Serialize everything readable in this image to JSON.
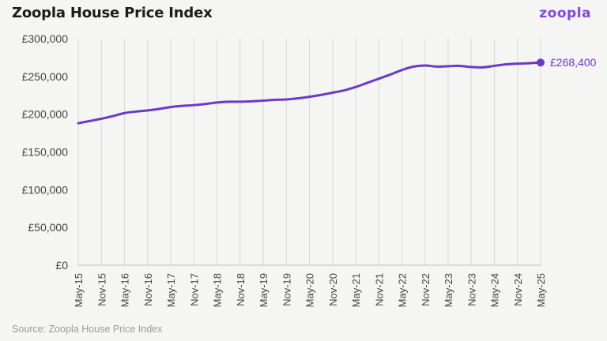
{
  "header": {
    "title": "Zoopla House Price Index",
    "logo_text": "zoopla"
  },
  "footer": {
    "source": "Source: Zoopla House Price Index"
  },
  "colors": {
    "line": "#6e38c9",
    "logo": "#8046f1",
    "grid": "#d9d9d9",
    "background": "#f5f5f3"
  },
  "chart_data": {
    "type": "line",
    "title": "Zoopla House Price Index",
    "xlabel": "",
    "ylabel": "",
    "ylim": [
      0,
      300000
    ],
    "yticks": [
      0,
      50000,
      100000,
      150000,
      200000,
      250000,
      300000
    ],
    "ytick_labels": [
      "£0",
      "£50,000",
      "£100,000",
      "£150,000",
      "£200,000",
      "£250,000",
      "£300,000"
    ],
    "xticks": [
      "May-15",
      "Nov-15",
      "May-16",
      "Nov-16",
      "May-17",
      "Nov-17",
      "May-18",
      "Nov-18",
      "May-19",
      "Nov-19",
      "May-20",
      "Nov-20",
      "May-21",
      "Nov-21",
      "May-22",
      "Nov-22",
      "May-23",
      "Nov-23",
      "May-24",
      "Nov-24",
      "May-25"
    ],
    "grid": "vertical",
    "legend": "none",
    "series": [
      {
        "x": [
          "May-15",
          "Aug-15",
          "Nov-15",
          "Feb-16",
          "May-16",
          "Aug-16",
          "Nov-16",
          "Feb-17",
          "May-17",
          "Aug-17",
          "Nov-17",
          "Feb-18",
          "May-18",
          "Aug-18",
          "Nov-18",
          "Feb-19",
          "May-19",
          "Aug-19",
          "Nov-19",
          "Feb-20",
          "May-20",
          "Aug-20",
          "Nov-20",
          "Feb-21",
          "May-21",
          "Aug-21",
          "Nov-21",
          "Feb-22",
          "May-22",
          "Aug-22",
          "Nov-22",
          "Feb-23",
          "May-23",
          "Aug-23",
          "Nov-23",
          "Feb-24",
          "May-24",
          "Aug-24",
          "Nov-24",
          "Feb-25",
          "May-25"
        ],
        "values": [
          188000,
          191000,
          194000,
          197500,
          201500,
          203500,
          205000,
          207000,
          209500,
          211000,
          212000,
          213500,
          215500,
          216500,
          216500,
          217000,
          218000,
          219000,
          219500,
          221000,
          223000,
          225500,
          228500,
          231500,
          236000,
          241500,
          247000,
          252500,
          258500,
          263000,
          264500,
          263000,
          263500,
          264000,
          262500,
          262000,
          264000,
          266000,
          267000,
          267500,
          268400
        ]
      }
    ],
    "end_label": "£268,400"
  }
}
